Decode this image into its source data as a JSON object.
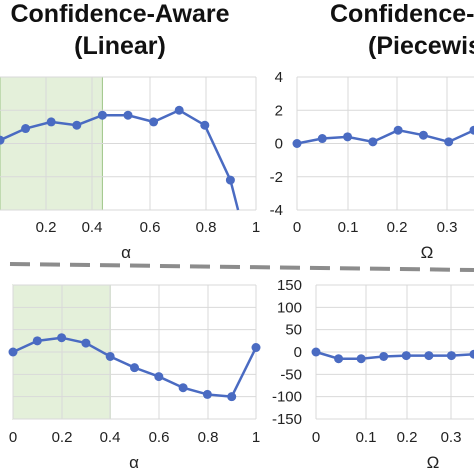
{
  "titles": [
    {
      "line1": "Confidence-Aware",
      "line2": "(Linear)"
    },
    {
      "line1": "Confidence-Aware",
      "line2": "(Piecewis"
    }
  ],
  "colors": {
    "series": "#4A6BC2",
    "shade": "#E4F0DA",
    "shade_border": "#9CC585",
    "grid": "#D9D9D9",
    "divider": "#8C8C8C"
  },
  "chart_data": [
    {
      "type": "line",
      "id": "top-left",
      "xlabel": "α",
      "ylabel": "",
      "xlim": [
        0,
        1
      ],
      "ylim": [
        -4,
        4
      ],
      "x_ticks": [
        "0.2",
        "0.4",
        "0.6",
        "0.8",
        "1"
      ],
      "y_ticks": [],
      "shaded_x_range": [
        0,
        0.4
      ],
      "grid": true,
      "series": [
        {
          "x": [
            0,
            0.1,
            0.2,
            0.3,
            0.4,
            0.5,
            0.6,
            0.7,
            0.8,
            0.9,
            0.93
          ],
          "y": [
            0.2,
            0.9,
            1.3,
            1.1,
            1.7,
            1.7,
            1.3,
            2.0,
            1.1,
            -2.2,
            -4.0
          ]
        }
      ]
    },
    {
      "type": "line",
      "id": "top-right",
      "xlabel": "Ω",
      "ylabel": "",
      "xlim": [
        0,
        0.35
      ],
      "ylim": [
        -4,
        4
      ],
      "x_ticks": [
        "0",
        "0.1",
        "0.2",
        "0.3"
      ],
      "y_ticks": [
        "4",
        "2",
        "0",
        "-2",
        "-4"
      ],
      "grid": true,
      "series": [
        {
          "x": [
            0,
            0.05,
            0.1,
            0.15,
            0.2,
            0.25,
            0.3,
            0.35
          ],
          "y": [
            0.0,
            0.3,
            0.4,
            0.1,
            0.8,
            0.5,
            0.1,
            0.8
          ]
        }
      ]
    },
    {
      "type": "line",
      "id": "bottom-left",
      "xlabel": "α",
      "ylabel": "",
      "xlim": [
        0,
        1
      ],
      "ylim": [
        -150,
        150
      ],
      "x_ticks": [
        "0",
        "0.2",
        "0.4",
        "0.6",
        "0.8",
        "1"
      ],
      "y_ticks": [],
      "shaded_x_range": [
        0,
        0.4
      ],
      "grid": true,
      "series": [
        {
          "x": [
            0,
            0.1,
            0.2,
            0.3,
            0.4,
            0.5,
            0.6,
            0.7,
            0.8,
            0.9,
            1.0
          ],
          "y": [
            0,
            25,
            32,
            20,
            -10,
            -35,
            -55,
            -80,
            -95,
            -100,
            10
          ]
        }
      ]
    },
    {
      "type": "line",
      "id": "bottom-right",
      "xlabel": "Ω",
      "ylabel": "",
      "xlim": [
        0,
        0.35
      ],
      "ylim": [
        -150,
        150
      ],
      "x_ticks": [
        "0",
        "0.1",
        "0.2",
        "0.3"
      ],
      "y_ticks": [
        "150",
        "100",
        "50",
        "0",
        "-50",
        "-100",
        "-150"
      ],
      "grid": true,
      "series": [
        {
          "x": [
            0,
            0.05,
            0.1,
            0.15,
            0.2,
            0.25,
            0.3,
            0.35
          ],
          "y": [
            0,
            -15,
            -15,
            -10,
            -8,
            -8,
            -8,
            -5
          ]
        }
      ]
    }
  ]
}
